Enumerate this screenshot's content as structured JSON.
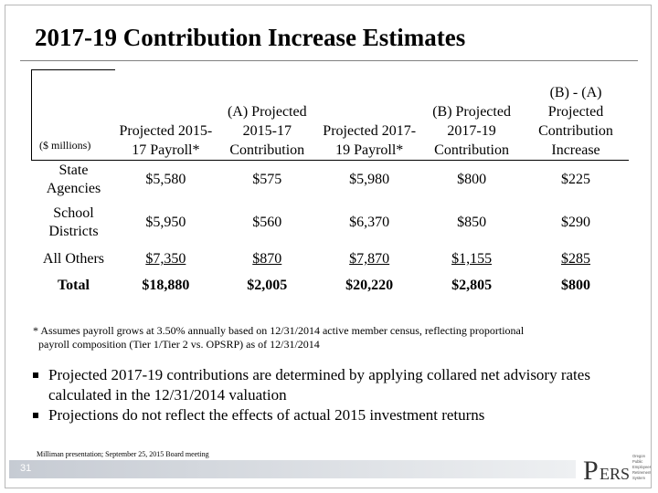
{
  "title": "2017-19 Contribution Increase Estimates",
  "table": {
    "units_label": "($ millions)",
    "columns": [
      "Projected 2015-17 Payroll*",
      "(A) Projected 2015-17 Contribution",
      "Projected 2017-19 Payroll*",
      "(B) Projected 2017-19 Contribution",
      "(B) - (A) Projected Contribution Increase"
    ],
    "rows": [
      {
        "label": "State Agencies",
        "values": [
          "$5,580",
          "$575",
          "$5,980",
          "$800",
          "$225"
        ]
      },
      {
        "label": "School Districts",
        "values": [
          "$5,950",
          "$560",
          "$6,370",
          "$850",
          "$290"
        ]
      },
      {
        "label": "All Others",
        "values": [
          "$7,350",
          "$870",
          "$7,870",
          "$1,155",
          "$285"
        ]
      },
      {
        "label": "Total",
        "values": [
          "$18,880",
          "$2,005",
          "$20,220",
          "$2,805",
          "$800"
        ]
      }
    ]
  },
  "footnote": {
    "line1": "* Assumes payroll grows at 3.50% annually based on 12/31/2014 active member census, reflecting proportional",
    "line2": "payroll composition (Tier 1/Tier 2 vs. OPSRP) as of 12/31/2014"
  },
  "bullets": [
    "Projected 2017-19 contributions are determined by applying collared net advisory rates calculated in the 12/31/2014 valuation",
    "Projections do not reflect the effects of actual 2015 investment returns"
  ],
  "source": "Milliman presentation; September 25, 2015 Board meeting",
  "page_number": "31",
  "logo": {
    "text": "PERS",
    "subtext": [
      "Oregon",
      "Public",
      "Employees",
      "Retirement",
      "System"
    ]
  },
  "colors": {
    "footer_bar": "#c6cbd3",
    "logo_text": "#333333"
  }
}
